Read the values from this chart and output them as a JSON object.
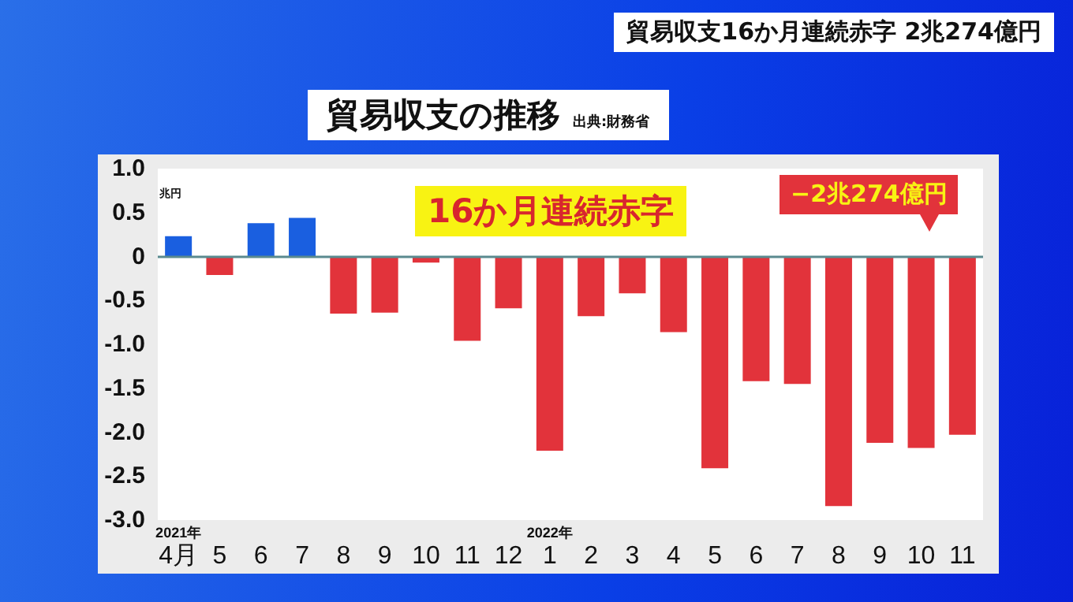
{
  "chart_data": {
    "type": "bar",
    "title": "貿易収支の推移",
    "ylabel": "兆円",
    "annotations": [
      "貿易収支16か月連続赤字 2兆274億円",
      "出典:財務省",
      "16か月連続赤字",
      "−2兆274億円"
    ],
    "categories": [
      "2021年\n4月",
      "5",
      "6",
      "7",
      "8",
      "9",
      "10",
      "11",
      "12",
      "2022年\n1",
      "2",
      "3",
      "4",
      "5",
      "6",
      "7",
      "8",
      "9",
      "10",
      "11"
    ],
    "values": [
      0.23,
      -0.21,
      0.38,
      0.44,
      -0.65,
      -0.64,
      -0.07,
      -0.96,
      -0.59,
      -2.21,
      -0.68,
      -0.42,
      -0.86,
      -2.41,
      -1.42,
      -1.45,
      -2.84,
      -2.12,
      -2.18,
      -2.03
    ],
    "colors": [
      "#1a5fe0",
      "#e2333b",
      "#1a5fe0",
      "#1a5fe0",
      "#e2333b",
      "#e2333b",
      "#e2333b",
      "#e2333b",
      "#e2333b",
      "#e2333b",
      "#e2333b",
      "#e2333b",
      "#e2333b",
      "#e2333b",
      "#e2333b",
      "#e2333b",
      "#e2333b",
      "#e2333b",
      "#e2333b",
      "#e2333b"
    ],
    "ylim": [
      -3,
      1
    ],
    "yticks": [
      {
        "value": 1,
        "label": "1.0"
      },
      {
        "value": 0.5,
        "label": "0.5"
      },
      {
        "value": 0,
        "label": "0"
      },
      {
        "value": -0.5,
        "label": "-0.5"
      },
      {
        "value": -1,
        "label": "-1.0"
      },
      {
        "value": -1.5,
        "label": "-1.5"
      },
      {
        "value": -2,
        "label": "-2.0"
      },
      {
        "value": -2.5,
        "label": "-2.5"
      },
      {
        "value": -3,
        "label": "-3.0"
      }
    ],
    "ref_lines": [
      {
        "axis": "y",
        "value": 0,
        "color": "#5a8a8f",
        "line_style": "solid"
      }
    ],
    "grid": false
  }
}
